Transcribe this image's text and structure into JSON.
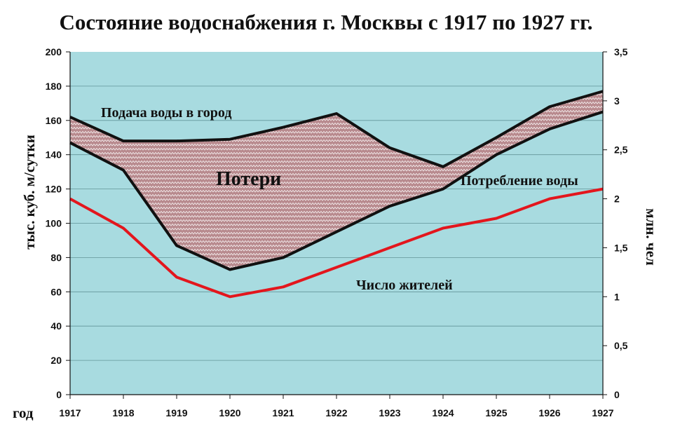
{
  "chart_data": {
    "type": "area",
    "title": "Состояние водоснабжения г. Москвы с 1917 по 1927 гг.",
    "xlabel": "год",
    "ylabel": "тыс. куб. м/сутки",
    "y2label": "млн. чел",
    "categories": [
      "1917",
      "1918",
      "1919",
      "1920",
      "1921",
      "1922",
      "1923",
      "1924",
      "1925",
      "1926",
      "1927"
    ],
    "ylim": [
      0,
      200
    ],
    "y2lim": [
      0,
      3.5
    ],
    "yticks": [
      "0",
      "20",
      "40",
      "60",
      "80",
      "100",
      "120",
      "140",
      "160",
      "180",
      "200"
    ],
    "y2ticks": [
      "0",
      "0,5",
      "1",
      "1,5",
      "2",
      "2,5",
      "3",
      "3,5"
    ],
    "grid": true,
    "series": [
      {
        "name": "Подача воды в город",
        "axis": "left",
        "values": [
          162,
          148,
          148,
          149,
          156,
          164,
          144,
          133,
          150,
          168,
          177
        ]
      },
      {
        "name": "Потребление воды",
        "axis": "left",
        "values": [
          147,
          131,
          87,
          73,
          80,
          95,
          110,
          120,
          140,
          155,
          165
        ]
      },
      {
        "name": "Число жителей",
        "axis": "right",
        "values": [
          2.0,
          1.7,
          1.2,
          1.0,
          1.1,
          1.3,
          1.5,
          1.7,
          1.8,
          2.0,
          2.1
        ]
      }
    ],
    "annotations": {
      "losses": "Потери"
    },
    "colors": {
      "plot_bg": "#a8dbe0",
      "losses_fill": "#b88a8e",
      "losses_stripe": "#ffffff",
      "supply_line": "#111111",
      "population_line": "#e3161d"
    }
  }
}
